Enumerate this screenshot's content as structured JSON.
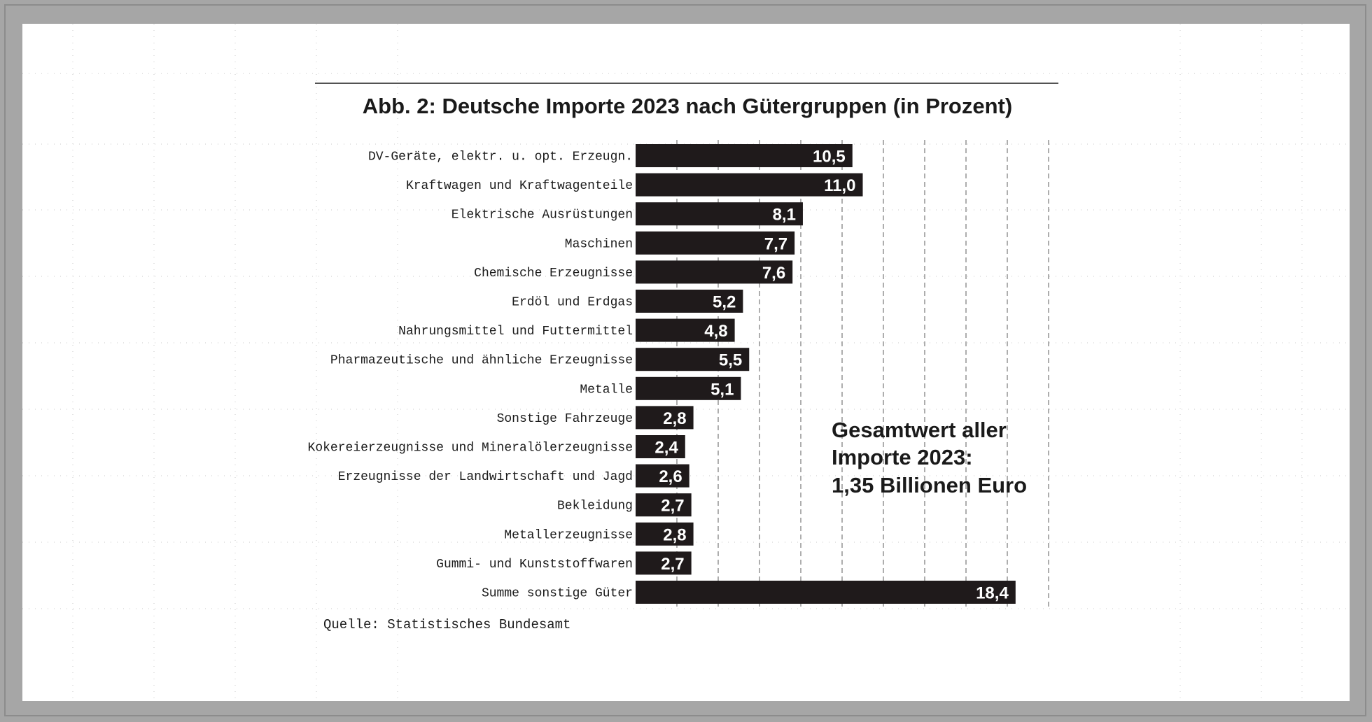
{
  "chart_data": {
    "type": "bar",
    "orientation": "horizontal",
    "title": "Abb. 2: Deutsche Importe 2023 nach Gütergruppen (in Prozent)",
    "categories": [
      "DV-Geräte, elektr. u. opt. Erzeugn.",
      "Kraftwagen und Kraftwagenteile",
      "Elektrische Ausrüstungen",
      "Maschinen",
      "Chemische Erzeugnisse",
      "Erdöl und Erdgas",
      "Nahrungsmittel und Futtermittel",
      "Pharmazeutische und ähnliche Erzeugnisse",
      "Metalle",
      "Sonstige Fahrzeuge",
      "Kokereierzeugnisse und Mineralölerzeugnisse",
      "Erzeugnisse der Landwirtschaft und Jagd",
      "Bekleidung",
      "Metallerzeugnisse",
      "Gummi- und Kunststoffwaren",
      "Summe sonstige Güter"
    ],
    "values": [
      10.5,
      11.0,
      8.1,
      7.7,
      7.6,
      5.2,
      4.8,
      5.5,
      5.1,
      2.8,
      2.4,
      2.6,
      2.7,
      2.8,
      2.7,
      18.4
    ],
    "value_labels": [
      "10,5",
      "11,0",
      "8,1",
      "7,7",
      "7,6",
      "5,2",
      "4,8",
      "5,5",
      "5,1",
      "2,8",
      "2,4",
      "2,6",
      "2,7",
      "2,8",
      "2,7",
      "18,4"
    ],
    "xlim": [
      0,
      20
    ],
    "gridlines": "vertical-dashed",
    "bar_color": "#1f1a1b",
    "annotation": [
      "Gesamtwert aller",
      "Importe 2023:",
      "1,35 Billionen Euro"
    ],
    "source": "Quelle: Statistisches Bundesamt"
  }
}
